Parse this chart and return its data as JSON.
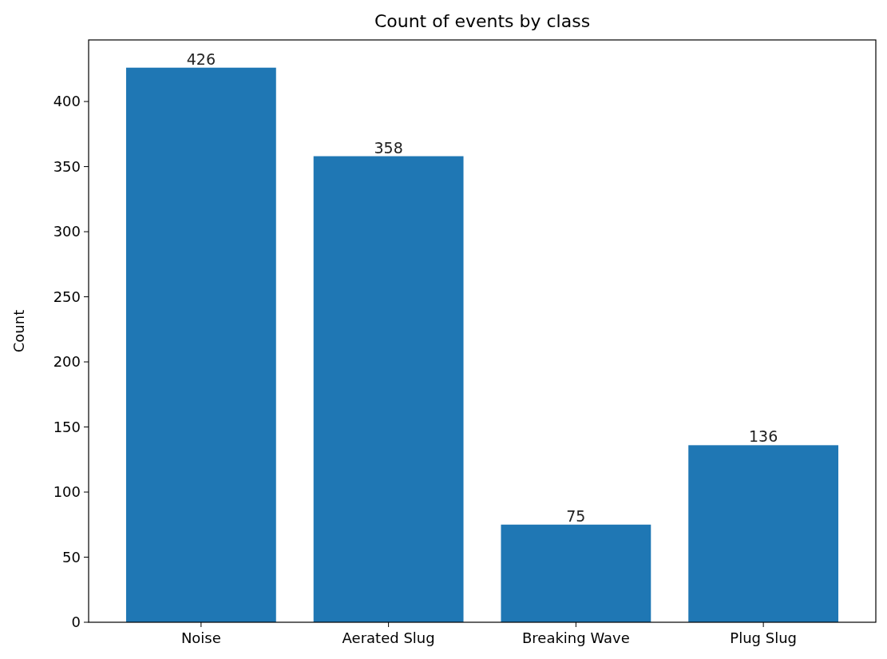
{
  "chart_data": {
    "type": "bar",
    "title": "Count of events by class",
    "ylabel": "Count",
    "categories": [
      "Noise",
      "Aerated Slug",
      "Breaking Wave",
      "Plug Slug"
    ],
    "values": [
      426,
      358,
      75,
      136
    ],
    "color": "#1f77b4",
    "ylim": [
      0,
      447.3
    ],
    "yticks": [
      0,
      50,
      100,
      150,
      200,
      250,
      300,
      350,
      400
    ],
    "data_labels": true,
    "grid": false
  }
}
